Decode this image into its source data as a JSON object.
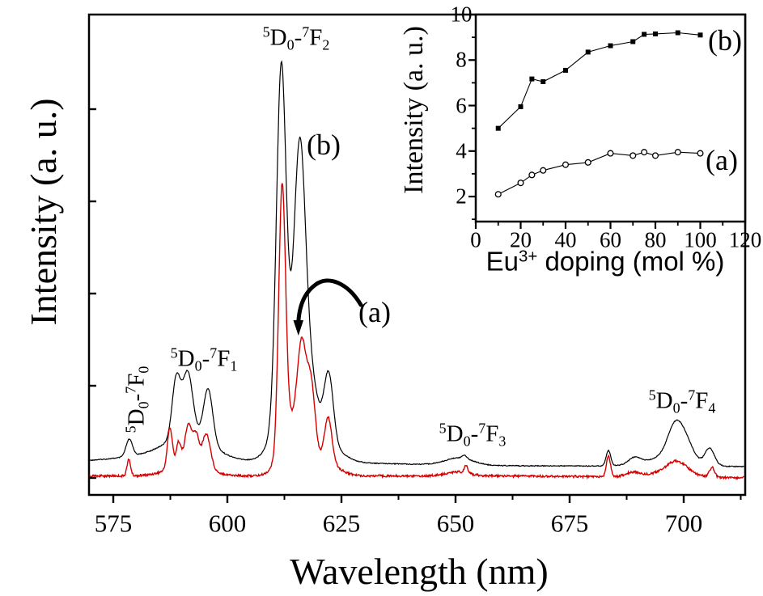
{
  "figure": {
    "background": "#ffffff",
    "curve_red": "#d40000",
    "curve_black": "#000000",
    "main_plot": {
      "xlabel": "Wavelength (nm)",
      "ylabel": "Intensity (a. u.)",
      "label_a": "(a)",
      "label_b": "(b)",
      "transitions": {
        "f0": "^5|D|_0|-|^7|F|_0",
        "f1": "^5|D|_0|-|^7|F|_1",
        "f2": "^5|D|_0|-|^7|F|_2",
        "f3": "^5|D|_0|-|^7|F|_3",
        "f4": "^5|D|_0|-|^7|F|_4"
      }
    },
    "inset": {
      "xlabel_tokens": "Eu|^3+| doping (mol %)",
      "ylabel": "Intensity (a. u.)",
      "label_a": "(a)",
      "label_b": "(b)"
    }
  },
  "chart_data": [
    {
      "id": "emission-spectra",
      "type": "line",
      "title": "Eu3+ emission spectra, two samples (a) and (b)",
      "xlabel": "Wavelength (nm)",
      "ylabel": "Intensity (a. u.)",
      "xlim": [
        569.7,
        713.3
      ],
      "x_ticks": [
        575,
        600,
        625,
        650,
        675,
        700
      ],
      "x_minor_ticks": [
        587.5,
        612.5,
        637.5,
        662.5,
        687.5,
        712.5
      ],
      "y_axis_note": "arbitrary units, unlabeled major ticks",
      "annotations": [
        {
          "text": "5D0-7F0",
          "at_nm": 579,
          "orientation": "vertical"
        },
        {
          "text": "5D0-7F1",
          "at_nm": 591,
          "orientation": "horizontal"
        },
        {
          "text": "5D0-7F2",
          "at_nm": 613,
          "orientation": "horizontal"
        },
        {
          "text": "5D0-7F3",
          "at_nm": 651,
          "orientation": "horizontal"
        },
        {
          "text": "5D0-7F4",
          "at_nm": 699,
          "orientation": "horizontal"
        },
        {
          "text": "(a)",
          "note": "curved arrow points to red curve peak near 613 nm"
        },
        {
          "text": "(b)",
          "note": "labels upper black curve near 616 nm peak"
        }
      ],
      "peak_format": [
        "center_nm",
        "amplitude_au",
        "sigma_nm"
      ],
      "series": [
        {
          "key": "a",
          "label": "(a)",
          "color": "#d40000",
          "peaks": [
            [
              578.4,
              20,
              0.4
            ],
            [
              587.4,
              50,
              0.55
            ],
            [
              589.3,
              28,
              0.5
            ],
            [
              591.5,
              48,
              0.8
            ],
            [
              593.2,
              33,
              0.6
            ],
            [
              595.4,
              42,
              0.9
            ],
            [
              591.5,
              16,
              4.0
            ],
            [
              612.0,
              320,
              0.75
            ],
            [
              616.3,
              105,
              0.9
            ],
            [
              618.3,
              85,
              0.9
            ],
            [
              614.5,
              70,
              2.5
            ],
            [
              622.1,
              55,
              0.8
            ],
            [
              621.0,
              18,
              3.0
            ],
            [
              650.5,
              5,
              2.5
            ],
            [
              652.3,
              9,
              0.35
            ],
            [
              683.5,
              26,
              0.45
            ],
            [
              688.8,
              5,
              1.5
            ],
            [
              698.5,
              15,
              2.2
            ],
            [
              697.0,
              6,
              5.0
            ],
            [
              706.2,
              12,
              0.55
            ],
            [
              705.0,
              -2.5,
              18
            ]
          ]
        },
        {
          "key": "b",
          "label": "(b)",
          "color": "#000000",
          "peaks": [
            [
              578.5,
              21,
              0.7
            ],
            [
              588.8,
              72,
              0.9
            ],
            [
              591.3,
              76,
              1.1
            ],
            [
              595.8,
              66,
              1.0
            ],
            [
              592.0,
              26,
              4.5
            ],
            [
              587.0,
              10,
              8
            ],
            [
              611.8,
              420,
              1.05
            ],
            [
              615.9,
              310,
              1.25
            ],
            [
              613.8,
              90,
              3.0
            ],
            [
              618.5,
              55,
              1.5
            ],
            [
              622.2,
              85,
              1.0
            ],
            [
              621.0,
              25,
              3.5
            ],
            [
              650.8,
              9,
              3.0
            ],
            [
              652.0,
              4,
              0.5
            ],
            [
              683.5,
              19,
              0.5
            ],
            [
              689.2,
              8,
              1.3
            ],
            [
              698.3,
              42,
              1.7
            ],
            [
              700.9,
              14,
              1.4
            ],
            [
              705.7,
              20,
              1.0
            ],
            [
              697.5,
              13,
              5.0
            ],
            [
              668,
              -6,
              30
            ],
            [
              712,
              -5,
              16
            ]
          ]
        }
      ]
    },
    {
      "id": "doping-dependence-inset",
      "type": "scatter",
      "title": "Integrated intensity vs Eu3+ doping",
      "xlabel": "Eu3+ doping (mol %)",
      "ylabel": "Intensity (a. u.)",
      "xlim": [
        0,
        120
      ],
      "ylim": [
        0.9,
        10
      ],
      "x_ticks": [
        0,
        20,
        40,
        60,
        80,
        100,
        120
      ],
      "x_minor_ticks": [
        10,
        30,
        50,
        70,
        90,
        110
      ],
      "y_ticks": [
        2,
        4,
        6,
        8,
        10
      ],
      "y_minor_ticks": [
        1,
        3,
        5,
        7,
        9
      ],
      "x": [
        10,
        20,
        25,
        30,
        40,
        50,
        60,
        70,
        75,
        80,
        90,
        100
      ],
      "series": [
        {
          "key": "a",
          "label": "(a)",
          "marker": "open-circle",
          "values": [
            2.1,
            2.6,
            2.95,
            3.15,
            3.4,
            3.5,
            3.9,
            3.8,
            3.95,
            3.8,
            3.95,
            3.9
          ]
        },
        {
          "key": "b",
          "label": "(b)",
          "marker": "filled-square",
          "values": [
            5.0,
            5.95,
            7.17,
            7.05,
            7.55,
            8.35,
            8.63,
            8.81,
            9.13,
            9.15,
            9.2,
            9.1
          ]
        }
      ],
      "legend_position": "right-inside"
    }
  ]
}
